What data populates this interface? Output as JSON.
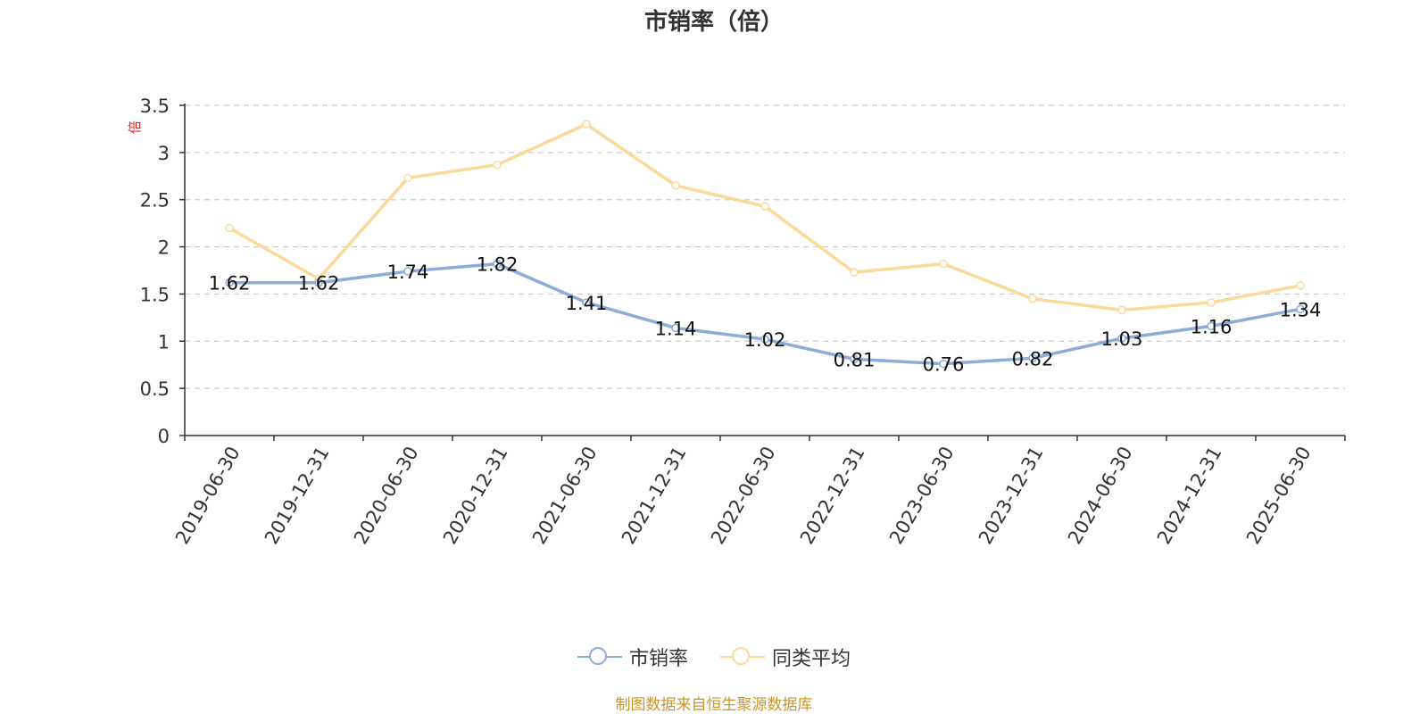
{
  "colors": {
    "series1": "#8eacd8",
    "series2": "#fbd99a",
    "unit": "#e8262a",
    "source": "#c9962b"
  },
  "chart_data": {
    "type": "line",
    "title": "市销率（倍）",
    "ylabel": "倍",
    "ylim": [
      0,
      3.5
    ],
    "yticks": [
      "0",
      "0.5",
      "1",
      "1.5",
      "2",
      "2.5",
      "3",
      "3.5"
    ],
    "grid": true,
    "legend_position": "bottom-center",
    "categories": [
      "2019-06-30",
      "2019-12-31",
      "2020-06-30",
      "2020-12-31",
      "2021-06-30",
      "2021-12-31",
      "2022-06-30",
      "2022-12-31",
      "2023-06-30",
      "2023-12-31",
      "2024-06-30",
      "2024-12-31",
      "2025-06-30"
    ],
    "series": [
      {
        "name": "市销率",
        "values": [
          1.62,
          1.62,
          1.74,
          1.82,
          1.41,
          1.14,
          1.02,
          0.81,
          0.76,
          0.82,
          1.03,
          1.16,
          1.34
        ],
        "labels": [
          "1.62",
          "1.62",
          "1.74",
          "1.82",
          "1.41",
          "1.14",
          "1.02",
          "0.81",
          "0.76",
          "0.82",
          "1.03",
          "1.16",
          "1.34"
        ]
      },
      {
        "name": "同类平均",
        "values": [
          2.2,
          1.66,
          2.73,
          2.87,
          3.3,
          2.65,
          2.43,
          1.73,
          1.82,
          1.45,
          1.33,
          1.41,
          1.59
        ]
      }
    ]
  },
  "footer": {
    "source": "制图数据来自恒生聚源数据库"
  }
}
